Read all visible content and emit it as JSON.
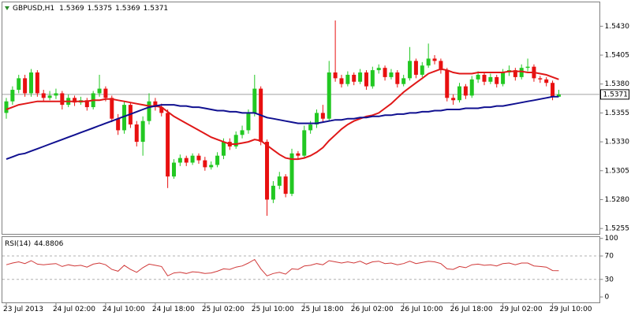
{
  "chart_data": {
    "type": "candlestick",
    "symbol": "GBPUSD,H1",
    "categories": [
      "23 Jul 2013",
      null,
      null,
      null,
      null,
      null,
      null,
      null,
      "24 Jul 02:00",
      null,
      null,
      null,
      null,
      null,
      null,
      null,
      "24 Jul 10:00",
      null,
      null,
      null,
      null,
      null,
      null,
      null,
      "24 Jul 18:00",
      null,
      null,
      null,
      null,
      null,
      null,
      null,
      "25 Jul 02:00",
      null,
      null,
      null,
      null,
      null,
      null,
      null,
      "25 Jul 10:00",
      null,
      null,
      null,
      null,
      null,
      null,
      null,
      "25 Jul 18:00",
      null,
      null,
      null,
      null,
      null,
      null,
      null,
      "26 Jul 02:00",
      null,
      null,
      null,
      null,
      null,
      null,
      null,
      "26 Jul 10:00",
      null,
      null,
      null,
      null,
      null,
      null,
      null,
      "26 Jul 18:00",
      null,
      null,
      null,
      null,
      null,
      null,
      null,
      "29 Jul 02:00",
      null,
      null,
      null,
      null,
      null,
      null,
      null,
      "29 Jul 10:00",
      null
    ],
    "open": [
      1.5355,
      1.5365,
      1.5375,
      1.5385,
      1.5372,
      1.539,
      1.5372,
      1.5368,
      1.537,
      1.5372,
      1.5362,
      1.5368,
      1.5364,
      1.5366,
      1.536,
      1.5372,
      1.5376,
      1.5368,
      1.535,
      1.534,
      1.5362,
      1.5345,
      1.533,
      1.5348,
      1.5365,
      1.536,
      1.5355,
      1.53,
      1.5312,
      1.5316,
      1.5312,
      1.5318,
      1.5314,
      1.5308,
      1.531,
      1.5318,
      1.533,
      1.5326,
      1.5336,
      1.534,
      1.5355,
      1.5376,
      1.533,
      1.528,
      1.5292,
      1.53,
      1.5285,
      1.532,
      1.5318,
      1.534,
      1.5345,
      1.5355,
      1.535,
      1.539,
      1.5385,
      1.538,
      1.5388,
      1.5382,
      1.539,
      1.5378,
      1.5392,
      1.5394,
      1.5386,
      1.539,
      1.538,
      1.5385,
      1.54,
      1.5388,
      1.5396,
      1.5402,
      1.54,
      1.5392,
      1.5368,
      1.5366,
      1.5378,
      1.537,
      1.5384,
      1.5388,
      1.5382,
      1.5386,
      1.538,
      1.539,
      1.5392,
      1.5386,
      1.5394,
      1.5395,
      1.5385,
      1.5384,
      1.5381,
      1.5369
    ],
    "high": [
      1.5368,
      1.5378,
      1.5388,
      1.5388,
      1.5393,
      1.5392,
      1.5375,
      1.5374,
      1.5376,
      1.5374,
      1.5371,
      1.537,
      1.5369,
      1.5368,
      1.5374,
      1.5388,
      1.5378,
      1.537,
      1.5354,
      1.5365,
      1.5364,
      1.5348,
      1.5352,
      1.5372,
      1.5368,
      1.5363,
      1.5358,
      1.5315,
      1.5319,
      1.5318,
      1.532,
      1.532,
      1.5317,
      1.5313,
      1.5321,
      1.5333,
      1.5333,
      1.5339,
      1.5344,
      1.5358,
      1.5388,
      1.5378,
      1.5332,
      1.5296,
      1.5304,
      1.5302,
      1.5324,
      1.5322,
      1.5344,
      1.5348,
      1.5358,
      1.5362,
      1.54,
      1.5435,
      1.5388,
      1.5391,
      1.539,
      1.5393,
      1.5392,
      1.5395,
      1.5397,
      1.5396,
      1.5393,
      1.5392,
      1.5388,
      1.5412,
      1.5402,
      1.5399,
      1.5415,
      1.5405,
      1.5402,
      1.5394,
      1.5371,
      1.5381,
      1.538,
      1.5387,
      1.5391,
      1.539,
      1.5389,
      1.5388,
      1.5393,
      1.5396,
      1.5394,
      1.5397,
      1.5402,
      1.5397,
      1.5387,
      1.5386,
      1.5383,
      1.5375
    ],
    "low": [
      1.535,
      1.5362,
      1.5372,
      1.5369,
      1.5369,
      1.5369,
      1.5365,
      1.5366,
      1.5367,
      1.5358,
      1.536,
      1.5361,
      1.5362,
      1.5357,
      1.5358,
      1.5369,
      1.5365,
      1.5347,
      1.5336,
      1.5337,
      1.5342,
      1.5326,
      1.5318,
      1.5345,
      1.5357,
      1.5352,
      1.529,
      1.5298,
      1.5309,
      1.5309,
      1.531,
      1.5311,
      1.5305,
      1.5306,
      1.5308,
      1.5315,
      1.5323,
      1.5324,
      1.5333,
      1.5337,
      1.5352,
      1.5327,
      1.5266,
      1.5277,
      1.5289,
      1.5282,
      1.5283,
      1.5315,
      1.5316,
      1.5337,
      1.5342,
      1.5347,
      1.5348,
      1.5382,
      1.5377,
      1.5378,
      1.5379,
      1.538,
      1.5375,
      1.5376,
      1.5389,
      1.5383,
      1.5384,
      1.5377,
      1.5378,
      1.5383,
      1.5385,
      1.5386,
      1.5394,
      1.5397,
      1.5389,
      1.5365,
      1.5362,
      1.5364,
      1.5367,
      1.5368,
      1.5381,
      1.5379,
      1.538,
      1.5377,
      1.5378,
      1.5387,
      1.5383,
      1.5384,
      1.5391,
      1.5382,
      1.5381,
      1.5378,
      1.5366,
      1.5369
    ],
    "close": [
      1.5365,
      1.5375,
      1.5385,
      1.5372,
      1.539,
      1.5372,
      1.5368,
      1.537,
      1.5372,
      1.5362,
      1.5368,
      1.5364,
      1.5366,
      1.536,
      1.5372,
      1.5376,
      1.5368,
      1.535,
      1.534,
      1.5362,
      1.5345,
      1.533,
      1.5348,
      1.5365,
      1.536,
      1.5355,
      1.53,
      1.5312,
      1.5316,
      1.5312,
      1.5318,
      1.5314,
      1.5308,
      1.531,
      1.5318,
      1.533,
      1.5326,
      1.5336,
      1.534,
      1.5355,
      1.5376,
      1.533,
      1.528,
      1.5292,
      1.53,
      1.5285,
      1.532,
      1.5318,
      1.534,
      1.5345,
      1.5355,
      1.535,
      1.539,
      1.5385,
      1.538,
      1.5388,
      1.5382,
      1.539,
      1.5378,
      1.5392,
      1.5394,
      1.5386,
      1.539,
      1.538,
      1.5385,
      1.54,
      1.5388,
      1.5396,
      1.5402,
      1.54,
      1.5392,
      1.5368,
      1.5366,
      1.5378,
      1.537,
      1.5384,
      1.5388,
      1.5382,
      1.5386,
      1.538,
      1.539,
      1.5392,
      1.5386,
      1.5394,
      1.5395,
      1.5385,
      1.5384,
      1.5381,
      1.5369,
      1.5371
    ],
    "up_color": "#22c822",
    "down_color": "#e81010",
    "ylim": [
      1.525,
      1.5451
    ],
    "yticks": [
      {
        "value": 1.543,
        "label": "1.5430"
      },
      1.5405,
      {
        "value": 1.538,
        "label": "1.5380"
      },
      1.5355,
      {
        "value": 1.533,
        "label": "1.5330"
      },
      1.5305,
      {
        "value": 1.528,
        "label": "1.5280"
      },
      1.5255
    ],
    "series": [
      {
        "color": "#e01818",
        "values": [
          1.5358,
          1.536,
          1.5362,
          1.5363,
          1.5364,
          1.5365,
          1.5365,
          1.5365,
          1.5365,
          1.5365,
          1.5365,
          1.5365,
          1.5365,
          1.5365,
          1.5366,
          1.5366,
          1.5367,
          1.5367,
          1.5366,
          1.5365,
          1.5364,
          1.5363,
          1.5362,
          1.5361,
          1.5361,
          1.536,
          1.5356,
          1.5352,
          1.5349,
          1.5346,
          1.5343,
          1.534,
          1.5337,
          1.5334,
          1.5332,
          1.533,
          1.5328,
          1.5328,
          1.5329,
          1.533,
          1.5332,
          1.5331,
          1.5327,
          1.5323,
          1.5319,
          1.5316,
          1.5315,
          1.5315,
          1.5316,
          1.5318,
          1.5321,
          1.5325,
          1.5331,
          1.5336,
          1.5341,
          1.5345,
          1.5348,
          1.535,
          1.5352,
          1.5353,
          1.5355,
          1.5359,
          1.5363,
          1.5368,
          1.5373,
          1.5377,
          1.5381,
          1.5385,
          1.5389,
          1.5391,
          1.5393,
          1.5392,
          1.539,
          1.5389,
          1.5389,
          1.5389,
          1.539,
          1.539,
          1.539,
          1.539,
          1.539,
          1.5391,
          1.5391,
          1.5391,
          1.539,
          1.539,
          1.5389,
          1.5388,
          1.5386,
          1.5384
        ]
      },
      {
        "color": "#101090",
        "values": [
          1.5315,
          1.5317,
          1.5319,
          1.532,
          1.5322,
          1.5324,
          1.5326,
          1.5328,
          1.533,
          1.5332,
          1.5334,
          1.5336,
          1.5338,
          1.534,
          1.5342,
          1.5344,
          1.5346,
          1.5348,
          1.535,
          1.5352,
          1.5354,
          1.5356,
          1.5358,
          1.536,
          1.5361,
          1.5362,
          1.5362,
          1.5362,
          1.5361,
          1.5361,
          1.536,
          1.536,
          1.5359,
          1.5358,
          1.5357,
          1.5357,
          1.5356,
          1.5356,
          1.5355,
          1.5355,
          1.5355,
          1.5353,
          1.5351,
          1.535,
          1.5349,
          1.5348,
          1.5347,
          1.5346,
          1.5346,
          1.5346,
          1.5346,
          1.5347,
          1.5348,
          1.5349,
          1.5349,
          1.535,
          1.535,
          1.5351,
          1.5351,
          1.5352,
          1.5352,
          1.5353,
          1.5353,
          1.5354,
          1.5354,
          1.5355,
          1.5355,
          1.5356,
          1.5356,
          1.5357,
          1.5357,
          1.5358,
          1.5358,
          1.5358,
          1.5359,
          1.5359,
          1.5359,
          1.536,
          1.536,
          1.5361,
          1.5361,
          1.5362,
          1.5363,
          1.5364,
          1.5365,
          1.5366,
          1.5367,
          1.5368,
          1.5369,
          1.5369
        ]
      }
    ],
    "rsi": {
      "title": "RSI(14)",
      "color": "#d03838",
      "values": [
        55,
        58,
        60,
        57,
        62,
        56,
        55,
        56,
        57,
        52,
        55,
        53,
        54,
        51,
        56,
        58,
        55,
        47,
        44,
        54,
        47,
        42,
        50,
        56,
        54,
        52,
        36,
        41,
        42,
        40,
        43,
        42,
        40,
        41,
        44,
        48,
        47,
        51,
        53,
        58,
        64,
        48,
        36,
        40,
        42,
        39,
        48,
        47,
        53,
        54,
        57,
        55,
        62,
        60,
        58,
        60,
        58,
        61,
        56,
        60,
        61,
        57,
        58,
        55,
        57,
        61,
        57,
        59,
        61,
        60,
        57,
        48,
        47,
        52,
        50,
        55,
        56,
        54,
        55,
        53,
        57,
        58,
        55,
        58,
        58,
        53,
        52,
        51,
        45,
        44.8806
      ],
      "ylim": [
        -10,
        103
      ],
      "yticks": [
        100,
        70,
        30,
        0
      ],
      "levels": [
        70,
        30
      ]
    }
  }
}
